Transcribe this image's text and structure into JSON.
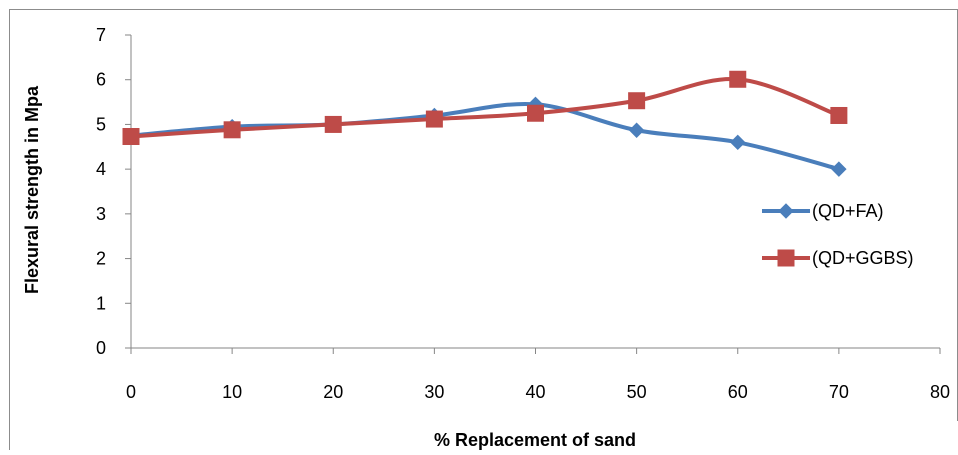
{
  "chart_data": {
    "type": "line",
    "smooth": true,
    "title": "",
    "xlabel": "% Replacement of sand",
    "ylabel": "Flexural strength in Mpa",
    "xlim": [
      0,
      80
    ],
    "ylim": [
      0,
      7
    ],
    "x_ticks": [
      "0",
      "10",
      "20",
      "30",
      "40",
      "50",
      "60",
      "70",
      "80"
    ],
    "y_ticks": [
      "0",
      "1",
      "2",
      "3",
      "4",
      "5",
      "6",
      "7"
    ],
    "grid": false,
    "legend_position": "right",
    "series": [
      {
        "name": "(QD+FA)",
        "color": "#4a7ebb",
        "marker": "diamond",
        "x": [
          0,
          10,
          20,
          30,
          40,
          50,
          60,
          70
        ],
        "y": [
          4.75,
          4.95,
          5.0,
          5.2,
          5.45,
          4.87,
          4.6,
          4.0
        ]
      },
      {
        "name": "(QD+GGBS)",
        "color": "#be4b48",
        "marker": "square",
        "x": [
          0,
          10,
          20,
          30,
          40,
          50,
          60,
          70
        ],
        "y": [
          4.73,
          4.88,
          5.0,
          5.12,
          5.25,
          5.53,
          6.01,
          5.2
        ]
      }
    ]
  }
}
